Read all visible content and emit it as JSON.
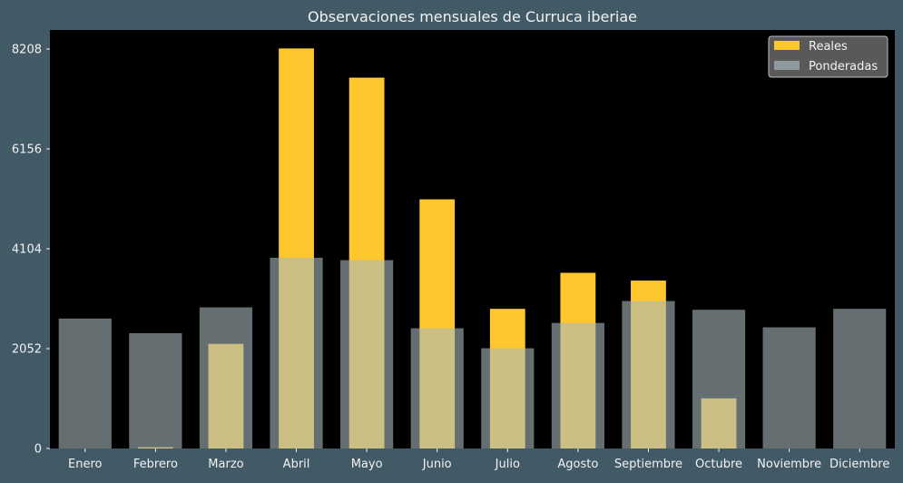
{
  "chart_data": {
    "type": "bar",
    "title": "Observaciones mensuales de Curruca iberiae",
    "xlabel": "",
    "ylabel": "",
    "categories": [
      "Enero",
      "Febrero",
      "Marzo",
      "Abril",
      "Mayo",
      "Junio",
      "Julio",
      "Agosto",
      "Septiembre",
      "Octubre",
      "Noviembre",
      "Diciembre"
    ],
    "series": [
      {
        "name": "Reales",
        "color": "#ffc72e",
        "values": [
          0,
          25,
          2150,
          8220,
          7620,
          5120,
          2870,
          3610,
          3450,
          1030,
          0,
          0
        ]
      },
      {
        "name": "Ponderadas",
        "color": "#a9b9bd",
        "values": [
          2670,
          2370,
          2900,
          3920,
          3870,
          2470,
          2060,
          2580,
          3030,
          2850,
          2490,
          2870
        ]
      }
    ],
    "yticks": [
      0,
      2052,
      4104,
      6156,
      8208
    ],
    "ylim": [
      0,
      8600
    ],
    "grid": false,
    "legend_position": "top-right",
    "colors": {
      "figure_background": "#415a66",
      "plot_background": "#000000",
      "text": "#f2f2f2"
    }
  }
}
